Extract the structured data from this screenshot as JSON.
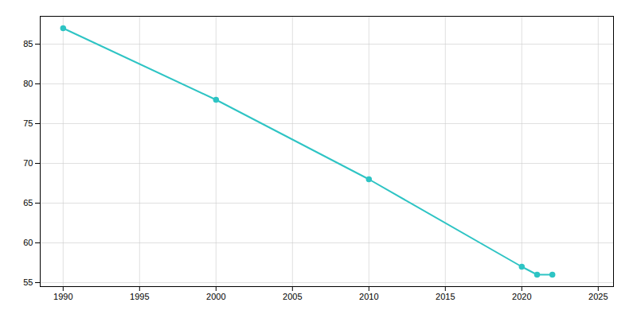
{
  "chart_data": {
    "type": "line",
    "x": [
      1990,
      2000,
      2010,
      2020,
      2021,
      2022
    ],
    "values": [
      87,
      78,
      68,
      57,
      56,
      56
    ],
    "color": "#2EC4C4",
    "marker": "circle",
    "xlim": [
      1988.5,
      2026
    ],
    "ylim": [
      54.5,
      88.5
    ],
    "xticks": [
      1990,
      1995,
      2000,
      2005,
      2010,
      2015,
      2020,
      2025
    ],
    "yticks": [
      55,
      60,
      65,
      70,
      75,
      80,
      85
    ],
    "grid": true
  }
}
